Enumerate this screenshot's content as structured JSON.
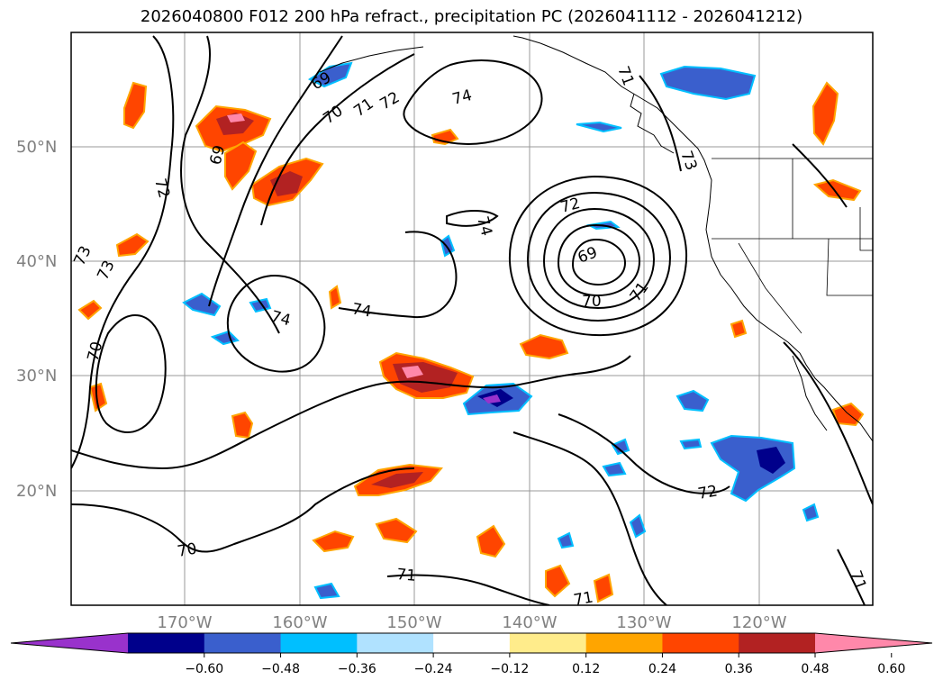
{
  "title": "2026040800 F012 200 hPa refract., precipitation PC (2026041112 - 2026041212)",
  "lat_labels": [
    "50°N",
    "40°N",
    "30°N",
    "20°N"
  ],
  "lon_labels": [
    "170°W",
    "160°W",
    "150°W",
    "140°W",
    "130°W",
    "120°W"
  ],
  "contour_labels": [
    "69",
    "70",
    "71",
    "72",
    "74",
    "69",
    "72",
    "73",
    "73",
    "74",
    "74",
    "74",
    "72",
    "69",
    "70",
    "71",
    "71",
    "73",
    "70",
    "72",
    "70",
    "71",
    "71",
    "71"
  ],
  "colorbar": {
    "ticks": [
      "−0.60",
      "−0.48",
      "−0.36",
      "−0.24",
      "−0.12",
      "0.12",
      "0.24",
      "0.36",
      "0.48",
      "0.60"
    ],
    "colors": [
      "#9932cc",
      "#00008b",
      "#3a5fcd",
      "#00bfff",
      "#b0e2ff",
      "#ffffff",
      "#ffec8b",
      "#ffa500",
      "#ff4500",
      "#b22222",
      "#ff88aa"
    ]
  },
  "colors": {
    "ocean": "#ffffff",
    "contour": "#000000",
    "grid": "#999999",
    "label": "#808080"
  }
}
